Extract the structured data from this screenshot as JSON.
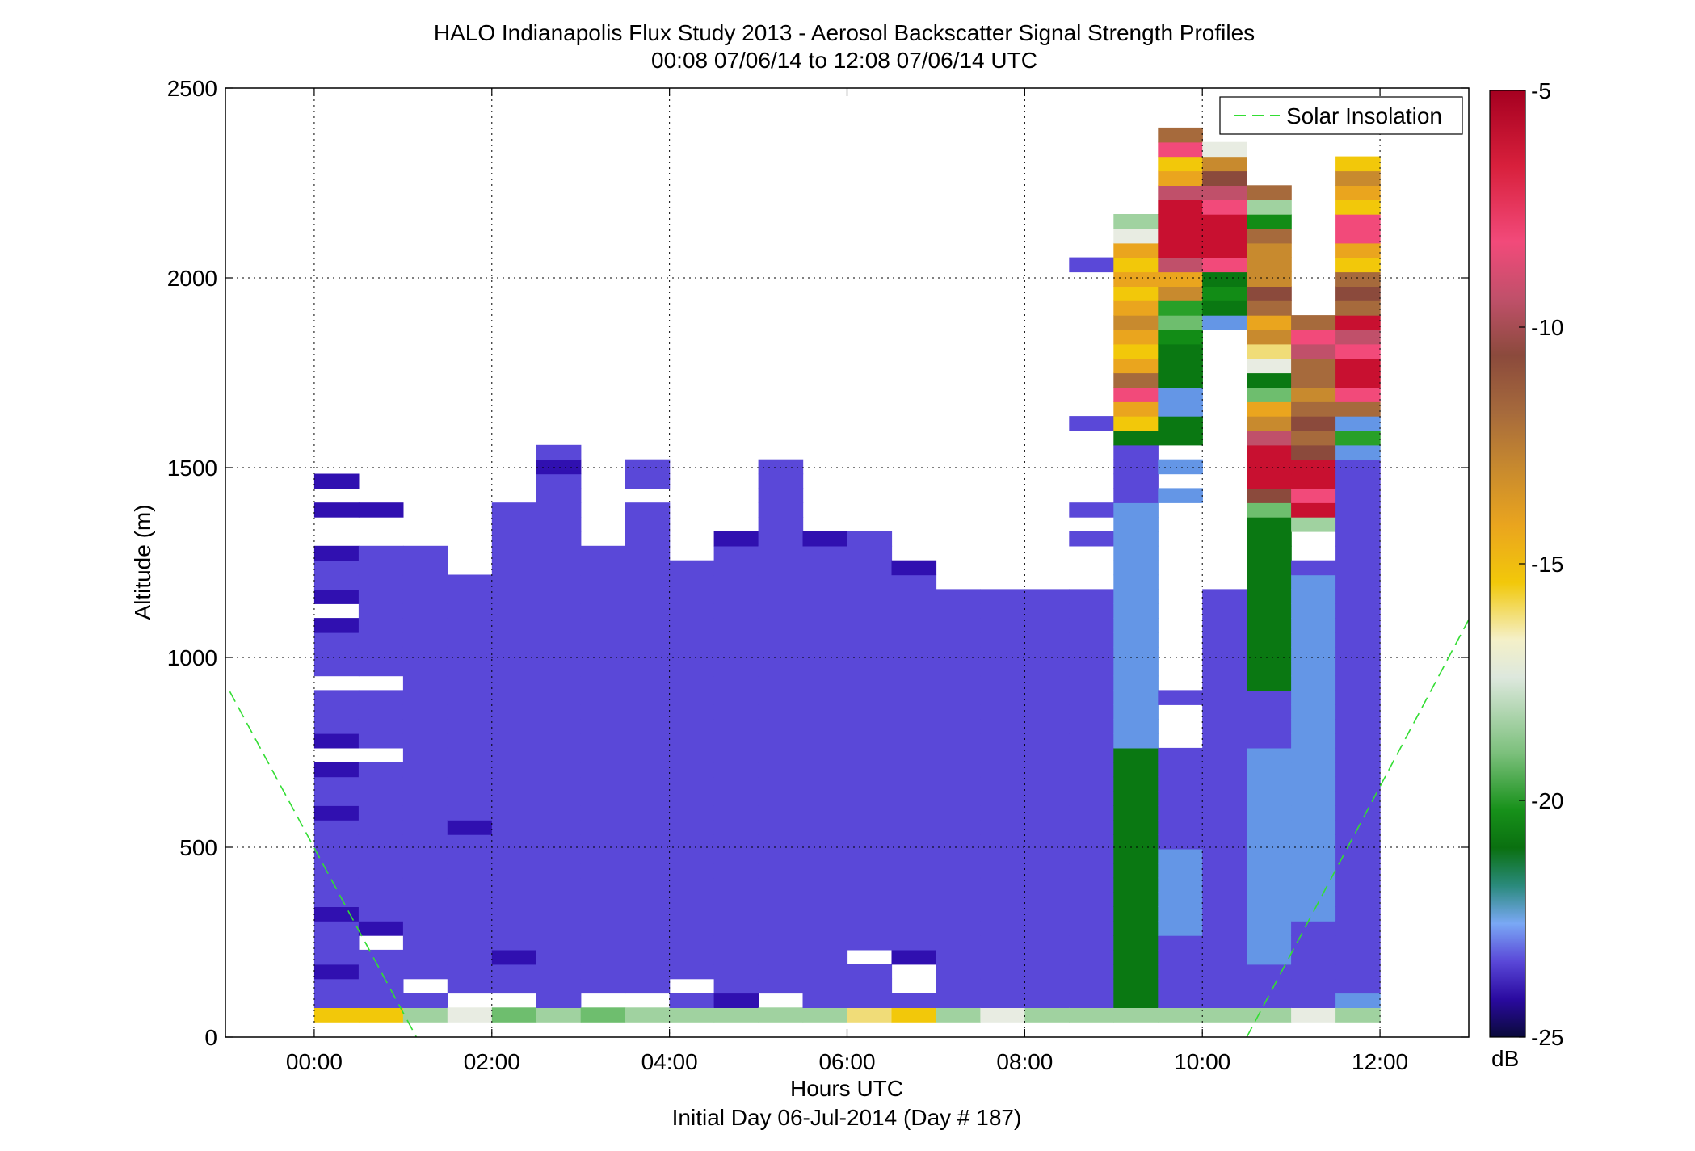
{
  "chart_data": {
    "type": "heatmap",
    "title": "HALO Indianapolis Flux Study 2013 - Aerosol Backscatter Signal Strength Profiles",
    "subtitle": "00:08 07/06/14 to 12:08 07/06/14  UTC",
    "xlabel": "Hours UTC",
    "xlabel2": "Initial Day 06-Jul-2014 (Day # 187)",
    "ylabel": "Altitude (m)",
    "xlim": [
      -1.0,
      13.0
    ],
    "ylim": [
      0,
      2500
    ],
    "x_ticks": [
      0,
      2,
      4,
      6,
      8,
      10,
      12
    ],
    "x_tick_labels": [
      "00:00",
      "02:00",
      "04:00",
      "06:00",
      "08:00",
      "10:00",
      "12:00"
    ],
    "y_ticks": [
      0,
      500,
      1000,
      1500,
      2000,
      2500
    ],
    "y_tick_labels": [
      "0",
      "500",
      "1000",
      "1500",
      "2000",
      "2500"
    ],
    "grid": true,
    "legend": {
      "position": "top-right",
      "entries": [
        "Solar Insolation"
      ]
    },
    "colorbar": {
      "label": "dB",
      "range": [
        -25,
        -5
      ],
      "ticks": [
        -5,
        -10,
        -15,
        -20,
        -25
      ],
      "tick_labels": [
        "-5",
        "-10",
        "-15",
        "-20",
        "-25"
      ]
    },
    "time_bins": [
      0.25,
      0.75,
      1.25,
      1.75,
      2.25,
      2.75,
      3.25,
      3.75,
      4.25,
      4.75,
      5.25,
      5.75,
      6.25,
      6.75,
      7.25,
      7.75,
      8.25,
      8.75,
      9.25,
      9.75,
      10.25,
      10.75,
      11.25,
      11.75
    ],
    "altitude_bin_size_m": 38,
    "profiles": [
      {
        "t": 0.25,
        "v": [
          -13,
          -22,
          -22,
          -23,
          -22,
          -22,
          -22,
          -23,
          -22,
          -22,
          -22,
          -22,
          -22,
          -22,
          -23,
          -22,
          -22,
          -23,
          null,
          -23,
          -22,
          -22,
          -22,
          null,
          -22,
          -22,
          -22,
          -23,
          null,
          -23,
          -22,
          -22,
          -23,
          null,
          null,
          -23,
          null,
          -23
        ]
      },
      {
        "t": 0.75,
        "v": [
          -13,
          -22,
          -22,
          -22,
          -22,
          null,
          -23,
          -22,
          -22,
          -22,
          -22,
          -22,
          -22,
          -22,
          -22,
          -22,
          -22,
          -22,
          null,
          -22,
          -22,
          -22,
          -22,
          null,
          -22,
          -22,
          -22,
          -22,
          -22,
          -22,
          -22,
          -22,
          -22,
          null,
          null,
          -23
        ]
      },
      {
        "t": 1.25,
        "v": [
          -16,
          -22,
          null,
          -22,
          -22,
          -22,
          -22,
          -22,
          -22,
          -22,
          -22,
          -22,
          -22,
          -22,
          -22,
          -22,
          -22,
          -22,
          -22,
          -22,
          -22,
          -22,
          -22,
          -22,
          -22,
          -22,
          -22,
          -22,
          -22,
          -22,
          -22,
          -22,
          -22
        ]
      },
      {
        "t": 1.75,
        "v": [
          -15,
          null,
          -22,
          -22,
          -22,
          -22,
          -22,
          -22,
          -22,
          -22,
          -22,
          -22,
          -22,
          -23,
          -22,
          -22,
          -22,
          -22,
          -22,
          -22,
          -22,
          -22,
          -22,
          -22,
          -22,
          -22,
          -22,
          -22,
          -22,
          -22,
          -22
        ]
      },
      {
        "t": 2.25,
        "v": [
          -17,
          null,
          -22,
          -22,
          -23,
          -22,
          -22,
          -22,
          -22,
          -22,
          -22,
          -22,
          -22,
          -22,
          -22,
          -22,
          -22,
          -22,
          -22,
          -22,
          -22,
          -22,
          -22,
          -22,
          -22,
          -22,
          -22,
          -22,
          -22,
          -22,
          -22,
          -22,
          -22,
          -22,
          -22,
          -22
        ]
      },
      {
        "t": 2.75,
        "v": [
          -16,
          -22,
          -22,
          -22,
          -22,
          -22,
          -22,
          -22,
          -22,
          -22,
          -22,
          -22,
          -22,
          -22,
          -22,
          -22,
          -22,
          -22,
          -22,
          -22,
          -22,
          -22,
          -22,
          -22,
          -22,
          -22,
          -22,
          -22,
          -22,
          -22,
          -22,
          -22,
          -22,
          -22,
          -22,
          -22,
          -22,
          -22,
          -23,
          -22
        ]
      },
      {
        "t": 3.25,
        "v": [
          -17,
          null,
          -22,
          -22,
          -22,
          -22,
          -22,
          -22,
          -22,
          -22,
          -22,
          -22,
          -22,
          -22,
          -22,
          -22,
          -22,
          -22,
          -22,
          -22,
          -22,
          -22,
          -22,
          -22,
          -22,
          -22,
          -22,
          -22,
          -22,
          -22,
          -22,
          -22,
          -22
        ]
      },
      {
        "t": 3.75,
        "v": [
          -16,
          null,
          -22,
          -22,
          -22,
          -22,
          -22,
          -22,
          -22,
          -22,
          -22,
          -22,
          -22,
          -22,
          -22,
          -22,
          -22,
          -22,
          -22,
          -22,
          -22,
          -22,
          -22,
          -22,
          -22,
          -22,
          -22,
          -22,
          -22,
          -22,
          -22,
          -22,
          -22,
          -22,
          -22,
          -22,
          null,
          -22,
          -22
        ]
      },
      {
        "t": 4.25,
        "v": [
          -16,
          -22,
          null,
          -22,
          -22,
          -22,
          -22,
          -22,
          -22,
          -22,
          -22,
          -22,
          -22,
          -22,
          -22,
          -22,
          -22,
          -22,
          -22,
          -22,
          -22,
          -22,
          -22,
          -22,
          -22,
          -22,
          -22,
          -22,
          -22,
          -22,
          -22,
          -22
        ]
      },
      {
        "t": 4.75,
        "v": [
          -16,
          -23,
          -22,
          -22,
          -22,
          -22,
          -22,
          -22,
          -22,
          -22,
          -22,
          -22,
          -22,
          -22,
          -22,
          -22,
          -22,
          -22,
          -22,
          -22,
          -22,
          -22,
          -22,
          -22,
          -22,
          -22,
          -22,
          -22,
          -22,
          -22,
          -22,
          -22,
          -22,
          -23
        ]
      },
      {
        "t": 5.25,
        "v": [
          -16,
          null,
          -22,
          -22,
          -22,
          -22,
          -22,
          -22,
          -22,
          -22,
          -22,
          -22,
          -22,
          -22,
          -22,
          -22,
          -22,
          -22,
          -22,
          -22,
          -22,
          -22,
          -22,
          -22,
          -22,
          -22,
          -22,
          -22,
          -22,
          -22,
          -22,
          -22,
          -22,
          -22,
          -22,
          -22,
          -22,
          -22,
          -22
        ]
      },
      {
        "t": 5.75,
        "v": [
          -16,
          -22,
          -22,
          -22,
          -22,
          -22,
          -22,
          -22,
          -22,
          -22,
          -22,
          -22,
          -22,
          -22,
          -22,
          -22,
          -22,
          -22,
          -22,
          -22,
          -22,
          -22,
          -22,
          -22,
          -22,
          -22,
          -22,
          -22,
          -22,
          -22,
          -22,
          -22,
          -22,
          -23
        ]
      },
      {
        "t": 6.25,
        "v": [
          -14,
          -22,
          -22,
          -22,
          null,
          -22,
          -22,
          -22,
          -22,
          -22,
          -22,
          -22,
          -22,
          -22,
          -22,
          -22,
          -22,
          -22,
          -22,
          -22,
          -22,
          -22,
          -22,
          -22,
          -22,
          -22,
          -22,
          -22,
          -22,
          -22,
          -22,
          -22,
          -22,
          -22
        ]
      },
      {
        "t": 6.75,
        "v": [
          -13,
          -22,
          null,
          null,
          -23,
          -22,
          -22,
          -22,
          -22,
          -22,
          -22,
          -22,
          -22,
          -22,
          -22,
          -22,
          -22,
          -22,
          -22,
          -22,
          -22,
          -22,
          -22,
          -22,
          -22,
          -22,
          -22,
          -22,
          -22,
          -22,
          -22,
          -23
        ]
      },
      {
        "t": 7.25,
        "v": [
          -16,
          -22,
          -22,
          -22,
          -22,
          -22,
          -22,
          -22,
          -22,
          -22,
          -22,
          -22,
          -22,
          -22,
          -22,
          -22,
          -22,
          -22,
          -22,
          -22,
          -22,
          -22,
          -22,
          -22,
          -22,
          -22,
          -22,
          -22,
          -22,
          -22
        ]
      },
      {
        "t": 7.75,
        "v": [
          -15,
          -22,
          -22,
          -22,
          -22,
          -22,
          -22,
          -22,
          -22,
          -22,
          -22,
          -22,
          -22,
          -22,
          -22,
          -22,
          -22,
          -22,
          -22,
          -22,
          -22,
          -22,
          -22,
          -22,
          -22,
          -22,
          -22,
          -22,
          -22,
          -22
        ]
      },
      {
        "t": 8.25,
        "v": [
          -16,
          -22,
          -22,
          -22,
          -22,
          -22,
          -22,
          -22,
          -22,
          -22,
          -22,
          -22,
          -22,
          -22,
          -22,
          -22,
          -22,
          -22,
          -22,
          -22,
          -22,
          -22,
          -22,
          -22,
          -22,
          -22,
          -22,
          -22,
          -22,
          -22
        ]
      },
      {
        "t": 8.75,
        "v": [
          -16,
          -22,
          -22,
          -22,
          -22,
          -22,
          -22,
          -22,
          -22,
          -22,
          -22,
          -22,
          -22,
          -22,
          -22,
          -22,
          -22,
          -22,
          -22,
          -22,
          -22,
          -22,
          -22,
          -22,
          -22,
          -22,
          -22,
          -22,
          -22,
          -22,
          null,
          null,
          null,
          -22,
          null,
          -22,
          null,
          null,
          null,
          null,
          null,
          -22,
          null,
          null,
          null,
          null,
          null,
          null,
          null,
          null,
          null,
          null,
          -22
        ]
      },
      {
        "t": 9.25,
        "v": [
          -16,
          -20,
          -20,
          -20,
          -20,
          -20,
          -20,
          -20,
          -20,
          -20,
          -20,
          -20,
          -20,
          -20,
          -20,
          -20,
          -20,
          -20,
          -20,
          -21,
          -21,
          -21,
          -21,
          -21,
          -21,
          -21,
          -21,
          -21,
          -21,
          -21,
          -21,
          -21,
          -21,
          -21,
          -21,
          -21,
          -22,
          -22,
          -22,
          -22,
          -20,
          -13,
          -12,
          -7,
          -10,
          -12,
          -13,
          -12,
          -11,
          -12,
          -13,
          -12,
          -13,
          -12,
          -15,
          -16
        ]
      },
      {
        "t": 9.75,
        "v": [
          -16,
          -22,
          -22,
          -22,
          -22,
          -22,
          -21,
          -21,
          -21,
          -21,
          -21,
          -21,
          -22,
          -22,
          -22,
          -22,
          -22,
          -22,
          -22,
          null,
          null,
          null,
          -22,
          null,
          null,
          null,
          null,
          null,
          null,
          null,
          null,
          null,
          null,
          null,
          null,
          null,
          -21,
          null,
          -21,
          null,
          -20,
          -20,
          -21,
          -21,
          -20,
          -20,
          -20,
          -19,
          -17,
          -18,
          -11,
          -12,
          -8,
          -6,
          -6,
          -6,
          -6,
          -8,
          -12,
          -13,
          -7,
          -10
        ]
      },
      {
        "t": 10.25,
        "v": [
          -16,
          -22,
          -22,
          -22,
          -22,
          -22,
          -22,
          -22,
          -22,
          -22,
          -22,
          -22,
          -22,
          -22,
          -22,
          -22,
          -22,
          -22,
          -22,
          -22,
          -22,
          -22,
          -22,
          -22,
          -22,
          -22,
          -22,
          -22,
          -22,
          -22,
          null,
          null,
          null,
          null,
          null,
          null,
          null,
          null,
          null,
          null,
          null,
          null,
          null,
          null,
          null,
          null,
          null,
          null,
          -21,
          -20,
          -19,
          -20,
          -7,
          -6,
          -6,
          -6,
          -7,
          -8,
          -9,
          -11,
          -15
        ]
      },
      {
        "t": 10.75,
        "v": [
          -16,
          -22,
          -22,
          -22,
          -21,
          -21,
          -21,
          -21,
          -21,
          -21,
          -21,
          -21,
          -21,
          -21,
          -21,
          -21,
          -21,
          -21,
          -21,
          -22,
          -22,
          -22,
          -22,
          -20,
          -20,
          -20,
          -20,
          -20,
          -20,
          -20,
          -20,
          -20,
          -20,
          -20,
          -20,
          -17,
          -9,
          -6,
          -6,
          -6,
          -8,
          -11,
          -12,
          -17,
          -20,
          -15,
          -14,
          -11,
          -12,
          -10,
          -9,
          -11,
          -11,
          -11,
          -10,
          -19,
          -16,
          -10
        ]
      },
      {
        "t": 11.25,
        "v": [
          -15,
          -22,
          -22,
          -22,
          -22,
          -22,
          -22,
          -21,
          -21,
          -21,
          -21,
          -21,
          -21,
          -21,
          -21,
          -21,
          -21,
          -21,
          -21,
          -21,
          -21,
          -21,
          -21,
          -21,
          -21,
          -21,
          -21,
          -21,
          -21,
          -21,
          -21,
          -22,
          null,
          null,
          -16,
          -6,
          -7,
          -6,
          -6,
          -9,
          -10,
          -9,
          -10,
          -11,
          -10,
          -10,
          -8,
          -7,
          -10
        ]
      },
      {
        "t": 11.75,
        "v": [
          -16,
          -21,
          -22,
          -22,
          -22,
          -22,
          -22,
          -22,
          -22,
          -22,
          -22,
          -22,
          -22,
          -22,
          -22,
          -22,
          -22,
          -22,
          -22,
          -22,
          -22,
          -22,
          -22,
          -22,
          -22,
          -22,
          -22,
          -22,
          -22,
          -22,
          -22,
          -22,
          -22,
          -22,
          -22,
          -22,
          -22,
          -22,
          -22,
          -21,
          -18,
          -21,
          -10,
          -7,
          -6,
          -6,
          -7,
          -8,
          -6,
          -10,
          -9,
          -10,
          -13,
          -12,
          -7,
          -7,
          -13,
          -12,
          -11,
          -13
        ]
      }
    ],
    "solar_insolation": {
      "segments": [
        {
          "x": [
            -0.95,
            1.15
          ],
          "y": [
            910,
            0
          ]
        },
        {
          "x": [
            10.5,
            13.0
          ],
          "y": [
            0,
            1100
          ]
        }
      ]
    }
  }
}
